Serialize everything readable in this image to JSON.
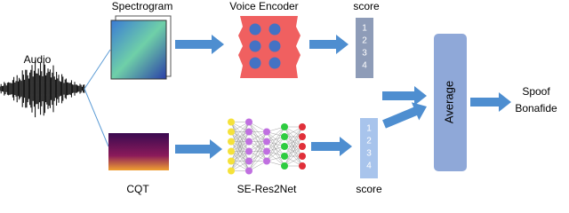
{
  "labels": {
    "audio": "Audio",
    "spectrogram": "Spectrogram",
    "cqt": "CQT",
    "voice_encoder": "Voice Encoder",
    "se_res2net": "SE-Res2Net",
    "score_top": "score",
    "score_bottom": "score",
    "average": "Average",
    "outputs": [
      "Spoof",
      "Bonafide"
    ]
  },
  "score_top_items": [
    1,
    2,
    3,
    4
  ],
  "score_bottom_items": [
    1,
    2,
    3,
    4
  ]
}
